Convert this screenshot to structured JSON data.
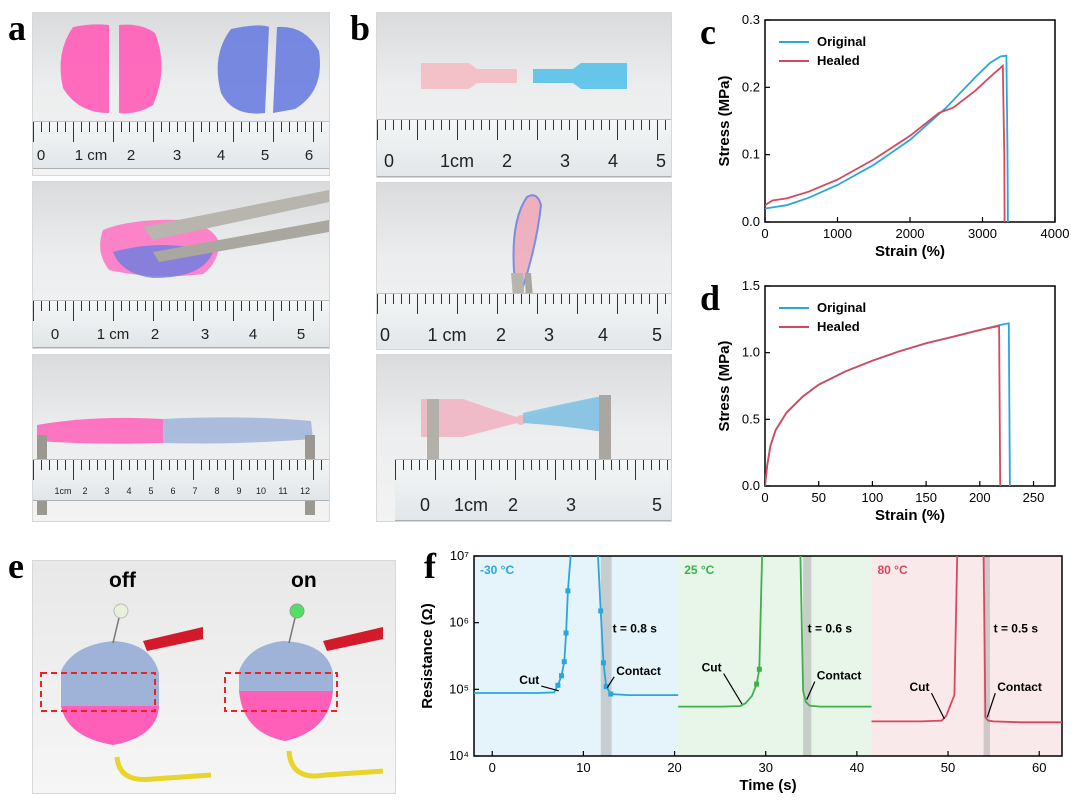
{
  "panel_labels": {
    "a": "a",
    "b": "b",
    "c": "c",
    "d": "d",
    "e": "e",
    "f": "f"
  },
  "photos": {
    "a1_ruler": [
      "0",
      "1 cm",
      "2",
      "3",
      "4",
      "5",
      "6"
    ],
    "a2_ruler": [
      "0",
      "1 cm",
      "2",
      "3",
      "4",
      "5"
    ],
    "a3_ruler": [
      "1cm",
      "2",
      "3",
      "4",
      "5",
      "6",
      "7",
      "8",
      "9",
      "10",
      "11",
      "12"
    ],
    "b1_ruler": [
      "0",
      "1cm",
      "2",
      "3",
      "4",
      "5"
    ],
    "b2_ruler": [
      "0",
      "1 cm",
      "2",
      "3",
      "4",
      "5"
    ],
    "b3_ruler": [
      "0",
      "1cm",
      "2",
      "3",
      "5"
    ],
    "e_off": "off",
    "e_on": "on"
  },
  "colors": {
    "original": "#29a7db",
    "healed": "#d6485d",
    "green": "#3db24a",
    "red": "#d6485d",
    "blue": "#29a7db"
  },
  "chart_data": [
    {
      "id": "c",
      "type": "line",
      "xlabel": "Strain (%)",
      "ylabel": "Stress (MPa)",
      "xlim": [
        0,
        4000
      ],
      "ylim": [
        0,
        0.3
      ],
      "xticks": [
        0,
        1000,
        2000,
        3000,
        4000
      ],
      "yticks": [
        0.0,
        0.1,
        0.2,
        0.3
      ],
      "xtick_labels": [
        "0",
        "1000",
        "2000",
        "3000",
        "4000"
      ],
      "ytick_labels": [
        "0.0",
        "0.1",
        "0.2",
        "0.3"
      ],
      "legend": "top-left",
      "series": [
        {
          "name": "Original",
          "color": "#29a7db",
          "x": [
            0,
            300,
            600,
            1000,
            1500,
            2000,
            2500,
            2900,
            3100,
            3250,
            3330,
            3345,
            3350
          ],
          "y": [
            0.02,
            0.025,
            0.036,
            0.055,
            0.085,
            0.122,
            0.17,
            0.215,
            0.236,
            0.246,
            0.247,
            0.1,
            0.0
          ]
        },
        {
          "name": "Healed",
          "color": "#d6485d",
          "x": [
            0,
            100,
            300,
            600,
            1000,
            1500,
            2000,
            2400,
            2600,
            2900,
            3100,
            3280,
            3300,
            3305
          ],
          "y": [
            0.025,
            0.032,
            0.035,
            0.045,
            0.063,
            0.093,
            0.128,
            0.162,
            0.17,
            0.195,
            0.215,
            0.232,
            0.1,
            0.0
          ]
        }
      ]
    },
    {
      "id": "d",
      "type": "line",
      "xlabel": "Strain (%)",
      "ylabel": "Stress (MPa)",
      "xlim": [
        0,
        270
      ],
      "ylim": [
        0,
        1.5
      ],
      "xticks": [
        0,
        50,
        100,
        150,
        200,
        250
      ],
      "yticks": [
        0.0,
        0.5,
        1.0,
        1.5
      ],
      "xtick_labels": [
        "0",
        "50",
        "100",
        "150",
        "200",
        "250"
      ],
      "ytick_labels": [
        "0.0",
        "0.5",
        "1.0",
        "1.5"
      ],
      "legend": "top-left",
      "series": [
        {
          "name": "Original",
          "color": "#29a7db",
          "x": [
            0,
            2,
            5,
            10,
            20,
            35,
            50,
            75,
            100,
            125,
            150,
            175,
            200,
            220,
            227,
            228
          ],
          "y": [
            0,
            0.15,
            0.3,
            0.42,
            0.55,
            0.67,
            0.76,
            0.86,
            0.94,
            1.01,
            1.07,
            1.12,
            1.17,
            1.21,
            1.22,
            0.0
          ]
        },
        {
          "name": "Healed",
          "color": "#d6485d",
          "x": [
            0,
            2,
            5,
            10,
            20,
            35,
            50,
            75,
            100,
            125,
            150,
            175,
            200,
            218,
            219
          ],
          "y": [
            0,
            0.15,
            0.3,
            0.42,
            0.55,
            0.67,
            0.76,
            0.86,
            0.94,
            1.01,
            1.07,
            1.12,
            1.17,
            1.2,
            0.0
          ]
        }
      ]
    },
    {
      "id": "f",
      "type": "line",
      "xlabel": "Time (s)",
      "ylabel": "Resistance (Ω)",
      "yscale": "log",
      "xlim": [
        -2,
        62.5
      ],
      "ylim": [
        10000,
        10000000
      ],
      "xticks": [
        0,
        10,
        20,
        30,
        40,
        50,
        60
      ],
      "xtick_labels": [
        "0",
        "10",
        "20",
        "30",
        "40",
        "50",
        "60"
      ],
      "yticks": [
        10000,
        100000,
        1000000,
        10000000
      ],
      "ytick_labels": [
        "10⁴",
        "10⁵",
        "10⁶",
        "10⁷"
      ],
      "regions": [
        {
          "label": "-30 °C",
          "x0": -2,
          "x1": 20.4,
          "color": "#29a7db",
          "t_label": "t = 0.8 s",
          "cut": "Cut",
          "contact": "Contact",
          "gap": [
            11.9,
            13.1
          ]
        },
        {
          "label": "25 °C",
          "x0": 20.4,
          "x1": 41.6,
          "color": "#3db24a",
          "t_label": "t = 0.6 s",
          "cut": "Cut",
          "contact": "Contact",
          "gap": [
            34.1,
            35.0
          ]
        },
        {
          "label": "80 °C",
          "x0": 41.6,
          "x1": 62.5,
          "color": "#d6485d",
          "t_label": "t = 0.5 s",
          "cut": "Cut",
          "contact": "Contact",
          "gap": [
            53.9,
            54.6
          ]
        }
      ],
      "series": [
        {
          "name": "-30 °C cut",
          "color": "#29a7db",
          "x": [
            -2,
            2,
            5,
            6.8,
            7.2,
            7.6,
            7.9,
            8.1,
            8.3,
            8.6
          ],
          "y": [
            88000,
            88000,
            88000,
            90000,
            115000,
            160000,
            260000,
            700000,
            3000000,
            10000000
          ]
        },
        {
          "name": "-30 °C contact",
          "color": "#29a7db",
          "x": [
            11.6,
            11.9,
            12.2,
            12.5,
            13,
            15,
            20.4
          ],
          "y": [
            10000000,
            1500000,
            250000,
            110000,
            85000,
            82000,
            82000
          ]
        },
        {
          "name": "25 °C cut",
          "color": "#3db24a",
          "x": [
            20.4,
            25,
            27.2,
            27.8,
            28.5,
            29,
            29.3,
            29.6
          ],
          "y": [
            55000,
            55000,
            56000,
            62000,
            80000,
            120000,
            200000,
            10000000
          ]
        },
        {
          "name": "25 °C contact",
          "color": "#3db24a",
          "x": [
            33.8,
            34.1,
            34.4,
            34.8,
            36,
            41.6
          ],
          "y": [
            10000000,
            95000,
            65000,
            57000,
            55000,
            55000
          ]
        },
        {
          "name": "80 °C cut",
          "color": "#d6485d",
          "x": [
            41.6,
            47,
            49.3,
            49.8,
            50.3,
            50.7,
            51
          ],
          "y": [
            33000,
            33000,
            34000,
            40000,
            60000,
            82000,
            10000000
          ]
        },
        {
          "name": "80 °C contact",
          "color": "#d6485d",
          "x": [
            53.9,
            54.1,
            54.4,
            55,
            58,
            62.5
          ],
          "y": [
            10000000,
            38000,
            34000,
            33000,
            32000,
            32000
          ]
        }
      ]
    }
  ]
}
